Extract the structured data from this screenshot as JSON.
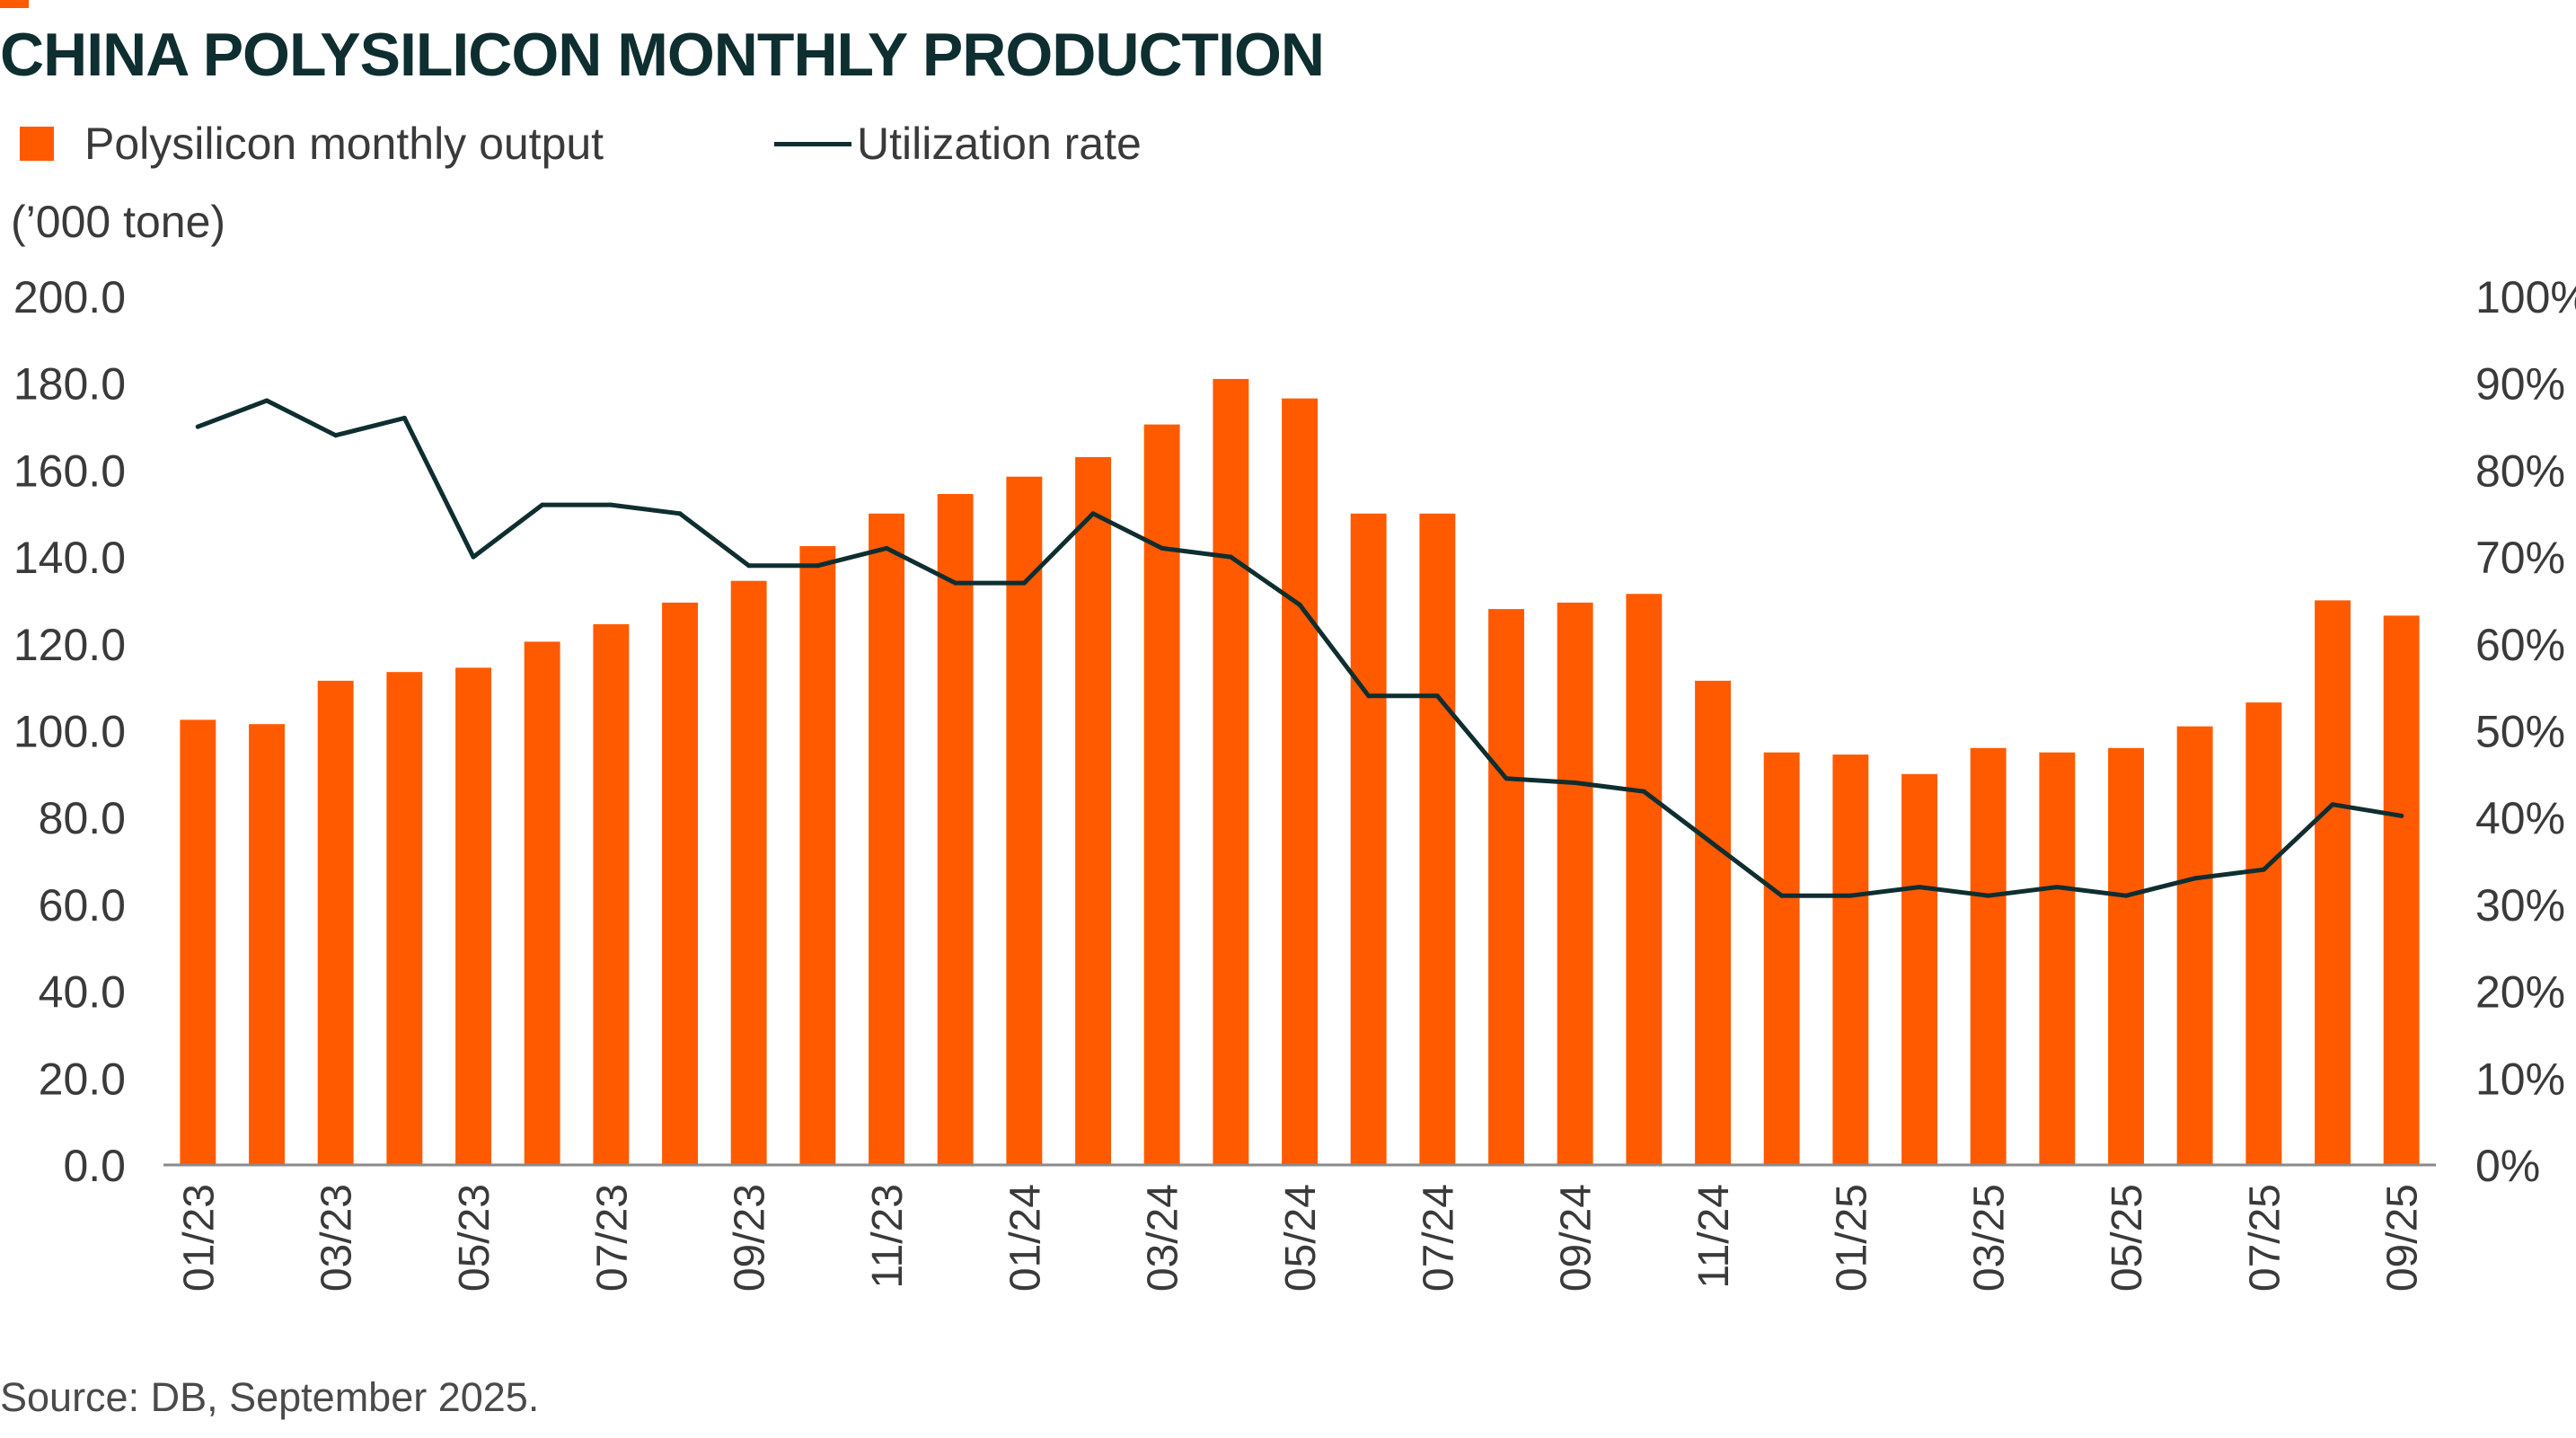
{
  "chart_data": {
    "type": "bar",
    "title": "CHINA POLYSILICON MONTHLY PRODUCTION",
    "y_unit_label": "(’000 tone)",
    "source": "Source: DB, September 2025.",
    "categories": [
      "01/23",
      "02/23",
      "03/23",
      "04/23",
      "05/23",
      "06/23",
      "07/23",
      "08/23",
      "09/23",
      "10/23",
      "11/23",
      "12/23",
      "01/24",
      "02/24",
      "03/24",
      "04/24",
      "05/24",
      "06/24",
      "07/24",
      "08/24",
      "09/24",
      "10/24",
      "11/24",
      "12/24",
      "01/25",
      "02/25",
      "03/25",
      "04/25",
      "05/25",
      "06/25",
      "07/25",
      "08/25",
      "09/25"
    ],
    "x_tick_labels": [
      "01/23",
      "",
      "03/23",
      "",
      "05/23",
      "",
      "07/23",
      "",
      "09/23",
      "",
      "11/23",
      "",
      "01/24",
      "",
      "03/24",
      "",
      "05/24",
      "",
      "07/24",
      "",
      "09/24",
      "",
      "11/24",
      "",
      "01/25",
      "",
      "03/25",
      "",
      "05/25",
      "",
      "07/25",
      "",
      "09/25"
    ],
    "series": [
      {
        "name": "Polysilicon monthly output",
        "type": "bar",
        "axis": "left",
        "color": "#FF5A00",
        "values": [
          102.5,
          101.5,
          111.5,
          113.5,
          114.5,
          120.5,
          124.5,
          129.5,
          134.5,
          142.5,
          150.0,
          154.5,
          158.5,
          163.0,
          170.5,
          181.0,
          176.5,
          150.0,
          150.0,
          128.0,
          129.5,
          131.5,
          111.5,
          95.0,
          94.5,
          90.0,
          96.0,
          95.0,
          96.0,
          101.0,
          106.5,
          130.0,
          126.5
        ]
      },
      {
        "name": "Utilization rate",
        "type": "line",
        "axis": "right",
        "color": "#0E2E30",
        "values": [
          85,
          88,
          84,
          86,
          70,
          76,
          76,
          75,
          69,
          69,
          71,
          67,
          67,
          75,
          71,
          70,
          64.5,
          54,
          54,
          44.5,
          44,
          43,
          37,
          31,
          31,
          32,
          31,
          32,
          31,
          33,
          34,
          41.5,
          40.2
        ]
      }
    ],
    "y_left": {
      "min": 0,
      "max": 200,
      "ticks": [
        "0.0",
        "20.0",
        "40.0",
        "60.0",
        "80.0",
        "100.0",
        "120.0",
        "140.0",
        "160.0",
        "180.0",
        "200.0"
      ]
    },
    "y_right": {
      "min": 0,
      "max": 100,
      "ticks": [
        "0%",
        "10%",
        "20%",
        "30%",
        "40%",
        "50%",
        "60%",
        "70%",
        "80%",
        "90%",
        "100%"
      ]
    },
    "grid": false,
    "legend_position": "top-left"
  }
}
